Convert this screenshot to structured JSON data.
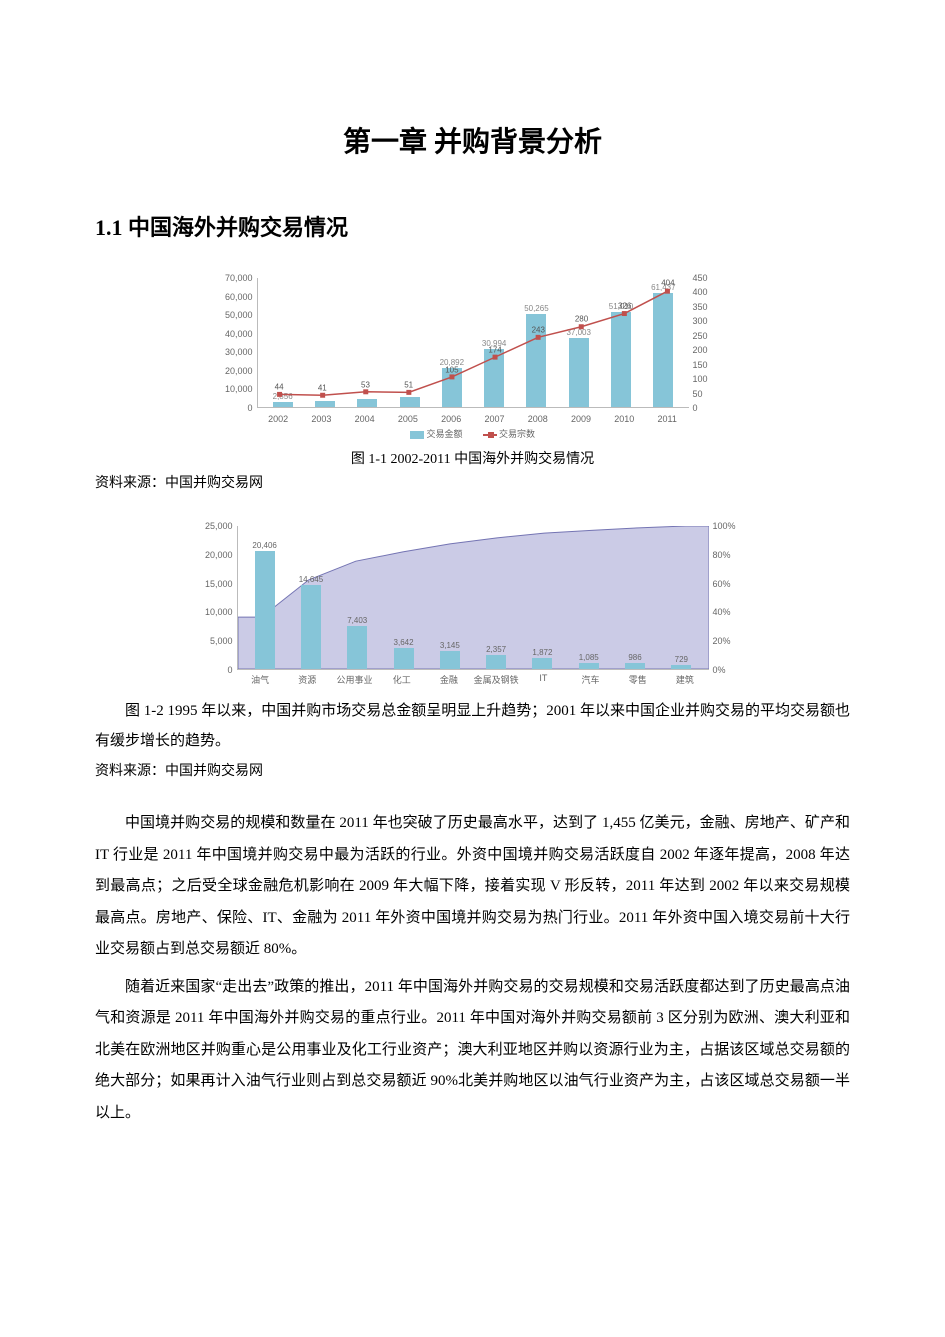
{
  "chapter_title": "第一章 并购背景分析",
  "section_1_1_title": "1.1 中国海外并购交易情况",
  "chart1": {
    "type": "combo_bar_line",
    "categories": [
      "2002",
      "2003",
      "2004",
      "2005",
      "2006",
      "2007",
      "2008",
      "2009",
      "2010",
      "2011"
    ],
    "bar_values": [
      2856,
      3000,
      4200,
      5500,
      20892,
      30994,
      50265,
      37003,
      51010,
      61437
    ],
    "bar_labels": [
      "2,856",
      "",
      "",
      "",
      "20,892",
      "30,994",
      "50,265",
      "37,003",
      "51,010",
      "61,437"
    ],
    "line_values": [
      44,
      41,
      53,
      51,
      105,
      174,
      243,
      280,
      326,
      404
    ],
    "line_labels": [
      "44",
      "41",
      "53",
      "51",
      "105",
      "174",
      "243",
      "280",
      "326",
      "404"
    ],
    "y_left": {
      "min": 0,
      "max": 70000,
      "step": 10000,
      "labels": [
        "0",
        "10,000",
        "20,000",
        "30,000",
        "40,000",
        "50,000",
        "60,000",
        "70,000"
      ]
    },
    "y_right": {
      "min": 0,
      "max": 450,
      "step": 50,
      "labels": [
        "0",
        "50",
        "100",
        "150",
        "200",
        "250",
        "300",
        "350",
        "400",
        "450"
      ]
    },
    "bar_color": "#86c5d8",
    "line_color": "#c0504d",
    "marker_color": "#c0504d",
    "grid_color": "#d9d9d9",
    "background": "#ffffff",
    "legend_bar": "交易金额",
    "legend_line": "交易宗数",
    "fontsize": 9
  },
  "chart1_caption": "图 1-1 2002-2011 中国海外并购交易情况",
  "chart1_source": "资料来源：中国并购交易网",
  "chart2": {
    "type": "bar_with_pareto_area",
    "categories": [
      "油气",
      "资源",
      "公用事业",
      "化工",
      "金融",
      "金属及钢铁",
      "IT",
      "汽车",
      "零售",
      "建筑"
    ],
    "values": [
      20406,
      14645,
      7403,
      3642,
      3145,
      2357,
      1872,
      1085,
      986,
      729
    ],
    "labels": [
      "20,406",
      "14,645",
      "7,403",
      "3,642",
      "3,145",
      "2,357",
      "1,872",
      "1,085",
      "986",
      "729"
    ],
    "y_left": {
      "min": 0,
      "max": 25000,
      "step": 5000,
      "labels": [
        "0",
        "5,000",
        "10,000",
        "15,000",
        "20,000",
        "25,000"
      ]
    },
    "y_right": {
      "min": 0,
      "max": 100,
      "step": 20,
      "labels": [
        "0%",
        "20%",
        "40%",
        "60%",
        "80%",
        "100%"
      ]
    },
    "cumulative_pct": [
      36.3,
      62.3,
      75.4,
      81.9,
      87.5,
      91.7,
      95.0,
      96.9,
      98.7,
      100.0
    ],
    "bar_color": "#86c5d8",
    "area_fill": "#b9b9dd",
    "area_stroke": "#7474b3",
    "grid_color": "#d9d9d9",
    "background": "#ffffff",
    "fontsize": 9
  },
  "chart2_caption": "图 1-2 1995 年以来，中国并购市场交易总金额呈明显上升趋势；2001 年以来中国企业并购交易的平均交易额也有缓步增长的趋势。",
  "chart2_source": "资料来源：中国并购交易网",
  "para1": "中国境并购交易的规模和数量在 2011 年也突破了历史最高水平，达到了 1,455 亿美元，金融、房地产、矿产和 IT 行业是 2011 年中国境并购交易中最为活跃的行业。外资中国境并购交易活跃度自 2002 年逐年提高，2008 年达到最高点；之后受全球金融危机影响在 2009 年大幅下降，接着实现 V 形反转，2011 年达到 2002 年以来交易规模最高点。房地产、保险、IT、金融为 2011 年外资中国境并购交易为热门行业。2011 年外资中国入境交易前十大行业交易额占到总交易额近 80%。",
  "para2": "随着近来国家“走出去”政策的推出，2011 年中国海外并购交易的交易规模和交易活跃度都达到了历史最高点油气和资源是 2011 年中国海外并购交易的重点行业。2011 年中国对海外并购交易额前 3 区分别为欧洲、澳大利亚和北美在欧洲地区并购重心是公用事业及化工行业资产；澳大利亚地区并购以资源行业为主，占据该区域总交易额的绝大部分；如果再计入油气行业则占到总交易额近 90%北美并购地区以油气行业资产为主，占该区域总交易额一半以上。"
}
